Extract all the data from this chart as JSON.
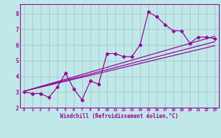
{
  "title": "",
  "xlabel": "Windchill (Refroidissement éolien,°C)",
  "bg_color": "#c0e8e8",
  "line_color": "#990099",
  "grid_color": "#a0c8c8",
  "xlim": [
    -0.5,
    23.5
  ],
  "ylim": [
    2.0,
    8.6
  ],
  "yticks": [
    2,
    3,
    4,
    5,
    6,
    7,
    8
  ],
  "xticks": [
    0,
    1,
    2,
    3,
    4,
    5,
    6,
    7,
    8,
    9,
    10,
    11,
    12,
    13,
    14,
    15,
    16,
    17,
    18,
    19,
    20,
    21,
    22,
    23
  ],
  "data_x": [
    0,
    1,
    2,
    3,
    4,
    5,
    6,
    7,
    8,
    9,
    10,
    11,
    12,
    13,
    14,
    15,
    16,
    17,
    18,
    19,
    20,
    21,
    22,
    23
  ],
  "data_y": [
    3.0,
    2.9,
    2.9,
    2.65,
    3.3,
    4.2,
    3.2,
    2.5,
    3.7,
    3.5,
    5.45,
    5.45,
    5.25,
    5.25,
    6.0,
    8.1,
    7.8,
    7.3,
    6.9,
    6.9,
    6.1,
    6.5,
    6.5,
    6.4
  ],
  "trend1_x": [
    0,
    23
  ],
  "trend1_y": [
    3.05,
    6.2
  ],
  "trend2_x": [
    0,
    23
  ],
  "trend2_y": [
    3.05,
    6.55
  ],
  "trend3_x": [
    0,
    23
  ],
  "trend3_y": [
    3.05,
    5.95
  ]
}
